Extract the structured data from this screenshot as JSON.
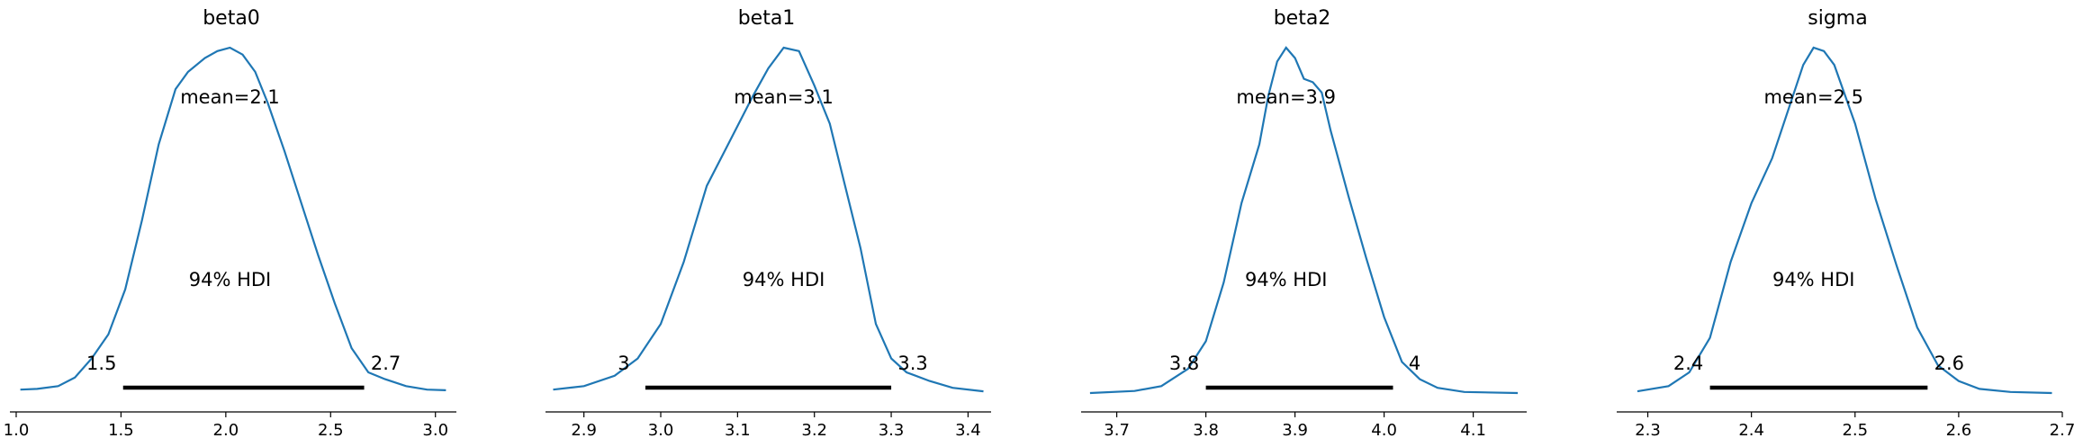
{
  "accent_color": "#1f77b4",
  "chart_data": [
    {
      "type": "line",
      "title": "beta0",
      "xlim": [
        0.97,
        3.1
      ],
      "xticks": [
        1.0,
        1.5,
        2.0,
        2.5,
        3.0
      ],
      "tick_labels": [
        "1.0",
        "1.5",
        "2.0",
        "2.5",
        "3.0"
      ],
      "mean_label": "mean=2.1",
      "hdi_label": "94% HDI",
      "hdi": [
        1.51,
        2.66
      ],
      "hdi_low_label": "1.5",
      "hdi_high_label": "2.7",
      "series": [
        {
          "x": [
            1.02,
            1.1,
            1.2,
            1.28,
            1.36,
            1.44,
            1.52,
            1.6,
            1.68,
            1.76,
            1.82,
            1.9,
            1.96,
            2.02,
            2.08,
            2.14,
            2.2,
            2.28,
            2.36,
            2.44,
            2.52,
            2.6,
            2.68,
            2.76,
            2.86,
            2.96,
            3.05
          ],
          "y": [
            0.01,
            0.012,
            0.02,
            0.045,
            0.1,
            0.17,
            0.3,
            0.5,
            0.72,
            0.88,
            0.93,
            0.97,
            0.99,
            1.0,
            0.98,
            0.93,
            0.84,
            0.7,
            0.55,
            0.4,
            0.26,
            0.13,
            0.06,
            0.04,
            0.02,
            0.01,
            0.008
          ]
        }
      ]
    },
    {
      "type": "line",
      "title": "beta1",
      "xlim": [
        2.85,
        3.43
      ],
      "xticks": [
        2.9,
        3.0,
        3.1,
        3.2,
        3.3,
        3.4
      ],
      "tick_labels": [
        "2.9",
        "3.0",
        "3.1",
        "3.2",
        "3.3",
        "3.4"
      ],
      "mean_label": "mean=3.1",
      "hdi_label": "94% HDI",
      "hdi": [
        2.98,
        3.3
      ],
      "hdi_low_label": "3",
      "hdi_high_label": "3.3",
      "series": [
        {
          "x": [
            2.86,
            2.9,
            2.94,
            2.97,
            3.0,
            3.03,
            3.06,
            3.09,
            3.12,
            3.14,
            3.16,
            3.18,
            3.2,
            3.22,
            3.24,
            3.26,
            3.28,
            3.3,
            3.32,
            3.35,
            3.38,
            3.42
          ],
          "y": [
            0.01,
            0.02,
            0.05,
            0.1,
            0.2,
            0.38,
            0.6,
            0.73,
            0.86,
            0.94,
            1.0,
            0.99,
            0.89,
            0.78,
            0.6,
            0.42,
            0.2,
            0.1,
            0.06,
            0.035,
            0.015,
            0.005
          ]
        }
      ]
    },
    {
      "type": "line",
      "title": "beta2",
      "xlim": [
        3.66,
        4.16
      ],
      "xticks": [
        3.7,
        3.8,
        3.9,
        4.0,
        4.1
      ],
      "tick_labels": [
        "3.7",
        "3.8",
        "3.9",
        "4.0",
        "4.1"
      ],
      "mean_label": "mean=3.9",
      "hdi_label": "94% HDI",
      "hdi": [
        3.8,
        4.01
      ],
      "hdi_low_label": "3.8",
      "hdi_high_label": "4",
      "series": [
        {
          "x": [
            3.67,
            3.72,
            3.75,
            3.78,
            3.8,
            3.82,
            3.84,
            3.86,
            3.87,
            3.88,
            3.89,
            3.9,
            3.91,
            3.92,
            3.93,
            3.94,
            3.96,
            3.98,
            4.0,
            4.02,
            4.04,
            4.06,
            4.09,
            4.15
          ],
          "y": [
            0.0,
            0.006,
            0.02,
            0.07,
            0.15,
            0.32,
            0.55,
            0.72,
            0.86,
            0.96,
            1.0,
            0.97,
            0.91,
            0.9,
            0.87,
            0.76,
            0.57,
            0.39,
            0.22,
            0.09,
            0.04,
            0.015,
            0.003,
            0.0
          ]
        }
      ]
    },
    {
      "type": "line",
      "title": "sigma",
      "xlim": [
        2.27,
        2.7
      ],
      "xticks": [
        2.3,
        2.4,
        2.5,
        2.6,
        2.7
      ],
      "tick_labels": [
        "2.3",
        "2.4",
        "2.5",
        "2.6",
        "2.7"
      ],
      "mean_label": "mean=2.5",
      "hdi_label": "94% HDI",
      "hdi": [
        2.36,
        2.57
      ],
      "hdi_low_label": "2.4",
      "hdi_high_label": "2.6",
      "series": [
        {
          "x": [
            2.29,
            2.32,
            2.34,
            2.36,
            2.38,
            2.4,
            2.42,
            2.44,
            2.45,
            2.46,
            2.47,
            2.48,
            2.5,
            2.52,
            2.54,
            2.56,
            2.58,
            2.6,
            2.62,
            2.65,
            2.69
          ],
          "y": [
            0.005,
            0.02,
            0.06,
            0.16,
            0.38,
            0.55,
            0.68,
            0.86,
            0.95,
            1.0,
            0.99,
            0.95,
            0.78,
            0.56,
            0.37,
            0.19,
            0.08,
            0.035,
            0.012,
            0.003,
            0.0
          ]
        }
      ]
    }
  ]
}
